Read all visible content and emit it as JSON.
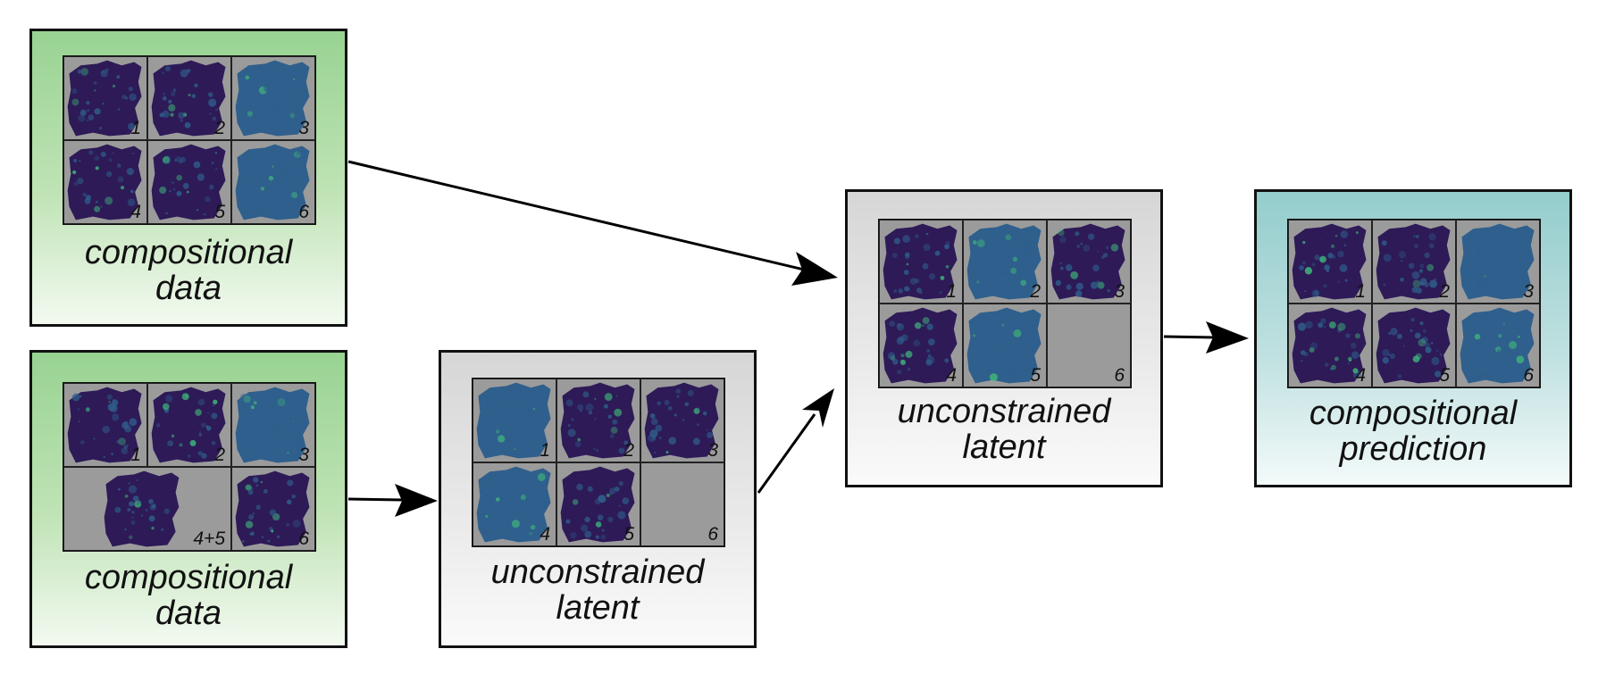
{
  "panels": [
    {
      "id": "p1",
      "caption": [
        "compositional",
        "data"
      ],
      "tiles": [
        "1",
        "2",
        "3",
        "4",
        "5",
        "6"
      ],
      "style": "green"
    },
    {
      "id": "p2",
      "caption": [
        "compositional",
        "data"
      ],
      "tiles": [
        "1",
        "2",
        "3",
        "4+5",
        "6"
      ],
      "style": "green"
    },
    {
      "id": "p3",
      "caption": [
        "unconstrained",
        "latent"
      ],
      "tiles": [
        "1",
        "2",
        "3",
        "4",
        "5",
        "6"
      ],
      "style": "gray"
    },
    {
      "id": "p4",
      "caption": [
        "unconstrained",
        "latent"
      ],
      "tiles": [
        "1",
        "2",
        "3",
        "4",
        "5",
        "6"
      ],
      "style": "gray"
    },
    {
      "id": "p5",
      "caption": [
        "compositional",
        "prediction"
      ],
      "tiles": [
        "1",
        "2",
        "3",
        "4",
        "5",
        "6"
      ],
      "style": "teal"
    }
  ],
  "colors": {
    "green": "#98d392",
    "gray": "#d6d6d6",
    "teal": "#94cdcd",
    "tile_bg": "#9b9b9b",
    "map_dark": "#2d1a57",
    "map_mid": "#2f5f8c",
    "map_light": "#3fb77a"
  }
}
